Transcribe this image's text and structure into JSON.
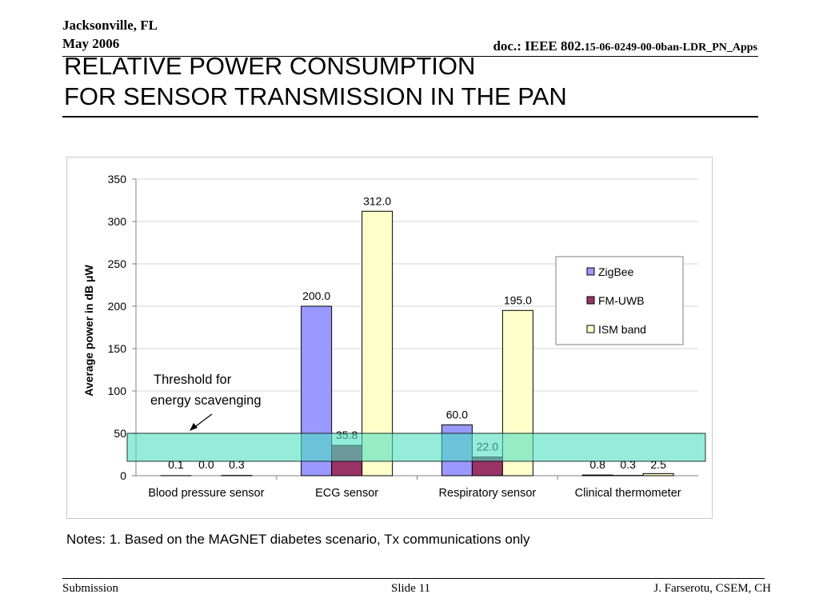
{
  "header": {
    "location": "Jacksonville, FL",
    "date": "May 2006",
    "doc_prefix": "doc.: IEEE 802.",
    "doc_suffix": "15-06-0249-00-0ban-LDR_PN_Apps"
  },
  "title_line1": "RELATIVE POWER CONSUMPTION",
  "title_line2": "FOR SENSOR TRANSMISSION IN THE PAN",
  "notes": "Notes: 1. Based on the MAGNET diabetes scenario, Tx communications only",
  "footer": {
    "left": "Submission",
    "middle": "Slide 11",
    "right": "J. Farserotu, CSEM, CH"
  },
  "chart_data": {
    "type": "bar",
    "ylabel": "Average power in dB μW",
    "ylim": [
      0,
      350
    ],
    "yticks": [
      0,
      50,
      100,
      150,
      200,
      250,
      300,
      350
    ],
    "categories": [
      "Blood pressure sensor",
      "ECG sensor",
      "Respiratory sensor",
      "Clinical thermometer"
    ],
    "series": [
      {
        "name": "ZigBee",
        "color": "#9999ff",
        "values": [
          0.1,
          200.0,
          60.0,
          0.8
        ],
        "labels": [
          "0.1",
          "200.0",
          "60.0",
          "0.8"
        ]
      },
      {
        "name": "FM-UWB",
        "color": "#993366",
        "values": [
          0.0,
          35.8,
          22.0,
          0.3
        ],
        "labels": [
          "0.0",
          "35.8",
          "22.0",
          "0.3"
        ]
      },
      {
        "name": "ISM band",
        "color": "#ffffcc",
        "values": [
          0.3,
          312.0,
          195.0,
          2.5
        ],
        "labels": [
          "0.3",
          "312.0",
          "195.0",
          "2.5"
        ]
      }
    ],
    "threshold_band": {
      "from": 17,
      "to": 50,
      "color": "#4fe0c0"
    },
    "annotation": {
      "line1": "Threshold for",
      "line2": "energy scavenging"
    },
    "grid": true,
    "legend": "right"
  }
}
